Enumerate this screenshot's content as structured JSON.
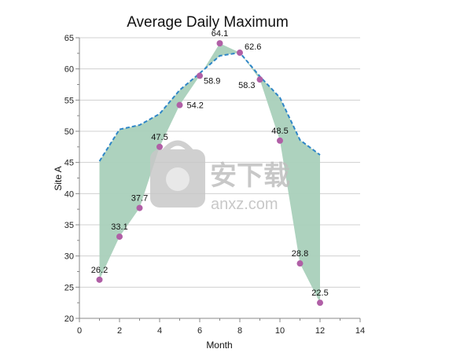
{
  "chart_data": {
    "type": "area",
    "title": "Average Daily Maximum",
    "xlabel": "Month",
    "ylabel": "Site A",
    "xlim": [
      0,
      14
    ],
    "ylim": [
      20,
      65
    ],
    "x_ticks": [
      0,
      2,
      4,
      6,
      8,
      10,
      12,
      14
    ],
    "y_ticks": [
      20,
      25,
      30,
      35,
      40,
      45,
      50,
      55,
      60,
      65
    ],
    "grid": "horizontal",
    "legend": "none",
    "x": [
      1,
      2,
      3,
      4,
      5,
      6,
      7,
      8,
      9,
      10,
      11,
      12
    ],
    "series": [
      {
        "style": "points",
        "values": [
          26.2,
          33.1,
          37.7,
          47.5,
          54.2,
          58.9,
          64.1,
          62.6,
          58.3,
          48.5,
          28.8,
          22.5
        ],
        "labels": [
          "26.2",
          "33.1",
          "37.7",
          "47.5",
          "54.2",
          "58.9",
          "64.1",
          "62.6",
          "58.3",
          "48.5",
          "28.8",
          "22.5"
        ],
        "color": "#b05fa6"
      },
      {
        "style": "dashed-line",
        "values": [
          45.2,
          50.3,
          51.0,
          52.8,
          56.6,
          59.3,
          62.1,
          62.6,
          58.8,
          55.4,
          48.6,
          46.2
        ],
        "color": "#2e86c7"
      }
    ],
    "fill_between": {
      "color": "#a9d0bb"
    }
  },
  "watermark": {
    "text_top": "安下载",
    "text_bottom": "anxz.com"
  }
}
